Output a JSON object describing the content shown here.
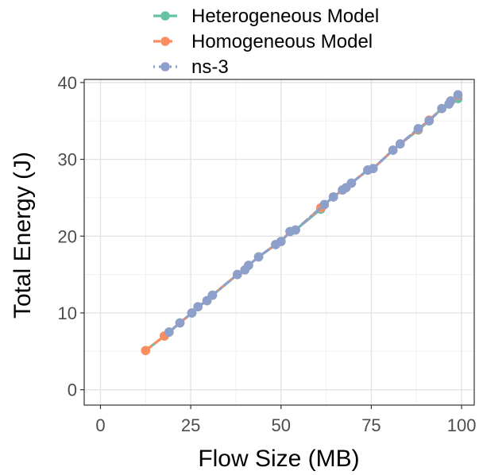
{
  "chart_data": {
    "type": "line",
    "xlabel": "Flow Size (MB)",
    "ylabel": "Total Energy (J)",
    "xlim": [
      -4.5,
      103.5
    ],
    "ylim": [
      -2.0,
      40.4
    ],
    "x_ticks": [
      0,
      25,
      50,
      75,
      100
    ],
    "y_ticks": [
      0,
      10,
      20,
      30,
      40
    ],
    "grid": true,
    "legend_position": "top",
    "series": [
      {
        "name": "Heterogeneous Model",
        "color": "#66C2A5",
        "dash": "solid",
        "points": [
          [
            12.5,
            5.1
          ],
          [
            17.7,
            7.0
          ],
          [
            19.0,
            7.5
          ],
          [
            22.0,
            8.7
          ],
          [
            25.3,
            10.0
          ],
          [
            27.0,
            10.8
          ],
          [
            29.5,
            11.6
          ],
          [
            31.0,
            12.3
          ],
          [
            37.9,
            15.0
          ],
          [
            40.0,
            15.6
          ],
          [
            41.0,
            16.2
          ],
          [
            43.8,
            17.3
          ],
          [
            48.5,
            18.9
          ],
          [
            50.0,
            19.3
          ],
          [
            52.5,
            20.6
          ],
          [
            54.0,
            20.8
          ],
          [
            61.0,
            23.5
          ],
          [
            62.0,
            24.1
          ],
          [
            64.5,
            25.1
          ],
          [
            67.0,
            26.0
          ],
          [
            68.0,
            26.3
          ],
          [
            69.5,
            26.9
          ],
          [
            74.0,
            28.6
          ],
          [
            75.5,
            28.8
          ],
          [
            81.0,
            31.2
          ],
          [
            83.0,
            32.0
          ],
          [
            88.0,
            33.8
          ],
          [
            91.0,
            35.0
          ],
          [
            94.5,
            36.6
          ],
          [
            96.5,
            37.2
          ],
          [
            97.0,
            37.6
          ],
          [
            99.0,
            37.9
          ]
        ]
      },
      {
        "name": "Homogeneous Model",
        "color": "#FC8D62",
        "dash": "dashed",
        "points": [
          [
            12.5,
            5.1
          ],
          [
            17.7,
            7.0
          ],
          [
            19.0,
            7.5
          ],
          [
            22.0,
            8.7
          ],
          [
            25.3,
            10.0
          ],
          [
            27.0,
            10.8
          ],
          [
            29.5,
            11.6
          ],
          [
            31.0,
            12.3
          ],
          [
            37.9,
            15.0
          ],
          [
            40.0,
            15.6
          ],
          [
            41.0,
            16.2
          ],
          [
            43.8,
            17.3
          ],
          [
            48.5,
            18.9
          ],
          [
            50.0,
            19.3
          ],
          [
            52.5,
            20.6
          ],
          [
            54.0,
            20.8
          ],
          [
            61.0,
            23.7
          ],
          [
            62.0,
            24.1
          ],
          [
            64.5,
            25.1
          ],
          [
            67.0,
            26.0
          ],
          [
            68.0,
            26.3
          ],
          [
            69.5,
            26.9
          ],
          [
            74.0,
            28.6
          ],
          [
            75.5,
            28.8
          ],
          [
            81.0,
            31.2
          ],
          [
            83.0,
            32.0
          ],
          [
            88.0,
            33.9
          ],
          [
            91.0,
            35.1
          ],
          [
            94.5,
            36.6
          ],
          [
            96.5,
            37.2
          ],
          [
            97.0,
            37.6
          ],
          [
            99.0,
            38.3
          ]
        ]
      },
      {
        "name": "ns-3",
        "color": "#8DA0CB",
        "dash": "dotdash",
        "points": [
          [
            19.0,
            7.5
          ],
          [
            22.0,
            8.7
          ],
          [
            25.3,
            10.0
          ],
          [
            27.0,
            10.8
          ],
          [
            29.5,
            11.6
          ],
          [
            31.0,
            12.3
          ],
          [
            37.9,
            15.0
          ],
          [
            40.0,
            15.6
          ],
          [
            41.0,
            16.2
          ],
          [
            43.8,
            17.3
          ],
          [
            48.5,
            18.9
          ],
          [
            50.0,
            19.3
          ],
          [
            52.5,
            20.6
          ],
          [
            54.0,
            20.8
          ],
          [
            62.0,
            24.1
          ],
          [
            64.5,
            25.1
          ],
          [
            67.0,
            26.0
          ],
          [
            68.0,
            26.3
          ],
          [
            69.5,
            26.9
          ],
          [
            74.0,
            28.6
          ],
          [
            75.5,
            28.8
          ],
          [
            81.0,
            31.2
          ],
          [
            83.0,
            32.0
          ],
          [
            88.0,
            34.0
          ],
          [
            91.0,
            35.0
          ],
          [
            94.5,
            36.6
          ],
          [
            96.5,
            37.2
          ],
          [
            97.0,
            37.6
          ],
          [
            99.0,
            38.4
          ]
        ]
      }
    ]
  }
}
